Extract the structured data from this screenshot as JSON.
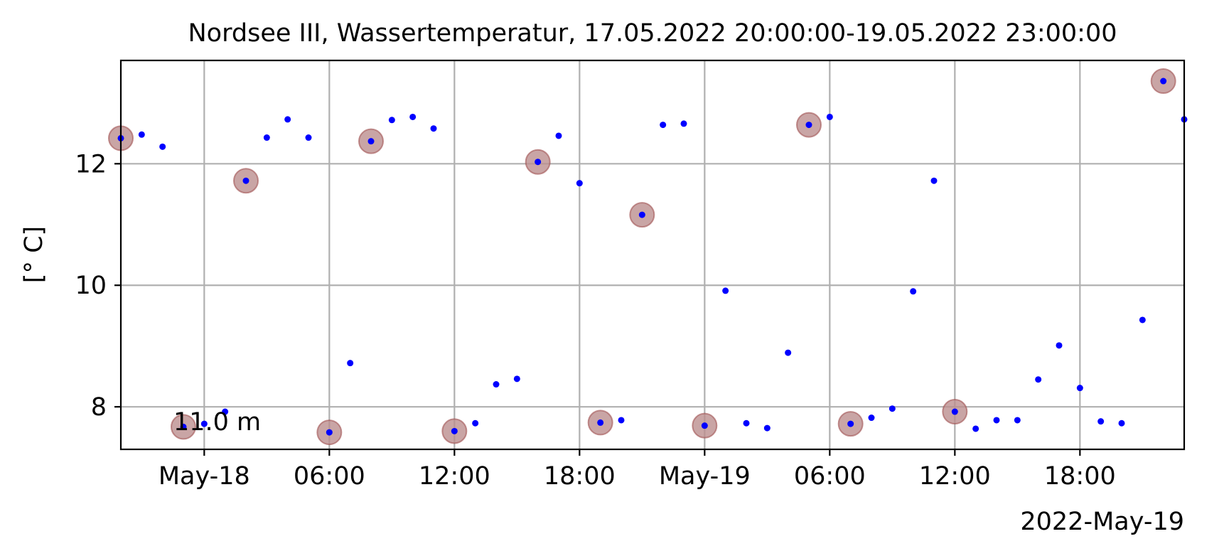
{
  "chart_data": {
    "type": "scatter",
    "title": "Nordsee III, Wassertemperatur, 17.05.2022 20:00:00-19.05.2022 23:00:00",
    "ylabel": "[° C]",
    "xlabel": "",
    "x_offset_label": "2022-May-19",
    "annotation": "11.0 m",
    "xlim": [
      "2022-05-17 20:00",
      "2022-05-19 23:00"
    ],
    "ylim": [
      7.3,
      13.7
    ],
    "yticks": [
      8,
      10,
      12
    ],
    "xticks": [
      {
        "t": "2022-05-18 00:00",
        "label": "May-18"
      },
      {
        "t": "2022-05-18 06:00",
        "label": "06:00"
      },
      {
        "t": "2022-05-18 12:00",
        "label": "12:00"
      },
      {
        "t": "2022-05-18 18:00",
        "label": "18:00"
      },
      {
        "t": "2022-05-19 00:00",
        "label": "May-19"
      },
      {
        "t": "2022-05-19 06:00",
        "label": "06:00"
      },
      {
        "t": "2022-05-19 12:00",
        "label": "12:00"
      },
      {
        "t": "2022-05-19 18:00",
        "label": "18:00"
      }
    ],
    "grid": true,
    "colors": {
      "points": "#0000ff",
      "highlight": "#bc8f8f",
      "grid": "#b0b0b0"
    },
    "series": [
      {
        "x": [
          "2022-05-17 20:00",
          "2022-05-17 21:00",
          "2022-05-17 22:00",
          "2022-05-17 23:00",
          "2022-05-18 00:00",
          "2022-05-18 01:00",
          "2022-05-18 02:00",
          "2022-05-18 03:00",
          "2022-05-18 04:00",
          "2022-05-18 05:00",
          "2022-05-18 06:00",
          "2022-05-18 07:00",
          "2022-05-18 08:00",
          "2022-05-18 09:00",
          "2022-05-18 10:00",
          "2022-05-18 11:00",
          "2022-05-18 12:00",
          "2022-05-18 13:00",
          "2022-05-18 14:00",
          "2022-05-18 15:00",
          "2022-05-18 16:00",
          "2022-05-18 17:00",
          "2022-05-18 18:00",
          "2022-05-18 19:00",
          "2022-05-18 20:00",
          "2022-05-18 21:00",
          "2022-05-18 22:00",
          "2022-05-18 23:00",
          "2022-05-19 00:00",
          "2022-05-19 01:00",
          "2022-05-19 02:00",
          "2022-05-19 03:00",
          "2022-05-19 04:00",
          "2022-05-19 05:00",
          "2022-05-19 06:00",
          "2022-05-19 07:00",
          "2022-05-19 08:00",
          "2022-05-19 09:00",
          "2022-05-19 10:00",
          "2022-05-19 11:00",
          "2022-05-19 12:00",
          "2022-05-19 13:00",
          "2022-05-19 14:00",
          "2022-05-19 15:00",
          "2022-05-19 16:00",
          "2022-05-19 17:00",
          "2022-05-19 18:00",
          "2022-05-19 19:00",
          "2022-05-19 20:00",
          "2022-05-19 21:00",
          "2022-05-19 22:00",
          "2022-05-19 23:00"
        ],
        "y": [
          12.42,
          12.48,
          12.28,
          7.67,
          7.72,
          7.92,
          11.72,
          12.43,
          12.73,
          12.43,
          7.58,
          8.72,
          12.37,
          12.72,
          12.77,
          12.58,
          7.6,
          7.73,
          8.37,
          8.46,
          12.03,
          12.46,
          11.68,
          7.74,
          7.78,
          11.16,
          12.64,
          12.66,
          7.69,
          9.91,
          7.73,
          7.65,
          8.89,
          12.64,
          12.77,
          7.72,
          7.82,
          7.97,
          9.9,
          11.72,
          7.92,
          7.64,
          7.78,
          7.78,
          8.45,
          9.01,
          8.31,
          7.76,
          7.73,
          9.43,
          13.36,
          12.73
        ],
        "highlighted": [
          true,
          false,
          false,
          true,
          false,
          false,
          true,
          false,
          false,
          false,
          true,
          false,
          true,
          false,
          false,
          false,
          true,
          false,
          false,
          false,
          true,
          false,
          false,
          true,
          false,
          true,
          false,
          false,
          true,
          false,
          false,
          false,
          false,
          true,
          false,
          true,
          false,
          false,
          false,
          false,
          true,
          false,
          false,
          false,
          false,
          false,
          false,
          false,
          false,
          false,
          true,
          false
        ]
      }
    ]
  }
}
